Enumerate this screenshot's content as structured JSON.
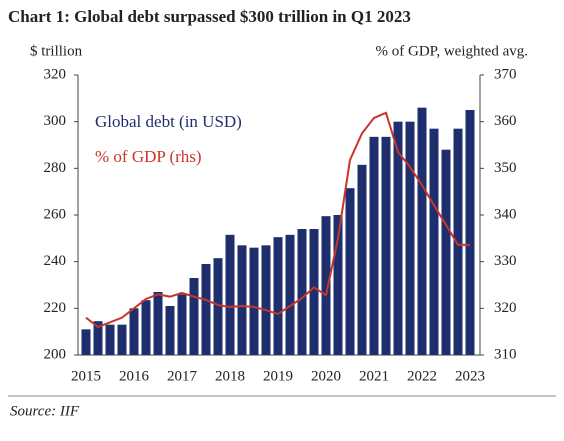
{
  "chart_data": {
    "type": "bar_line",
    "title": "Chart 1: Global debt surpassed $300 trillion in Q1 2023",
    "y_label": "$ trillion",
    "y2_label": "% of GDP, weighted avg.",
    "source": "Source: IIF",
    "categories": [
      "2015",
      null,
      null,
      null,
      "2016",
      null,
      null,
      null,
      "2017",
      null,
      null,
      null,
      "2018",
      null,
      null,
      null,
      "2019",
      null,
      null,
      null,
      "2020",
      null,
      null,
      null,
      "2021",
      null,
      null,
      null,
      "2022",
      null,
      null,
      null,
      "2023"
    ],
    "series": [
      {
        "name": "Global debt (in USD)",
        "type": "bar",
        "color": "#1f2f6e",
        "values": [
          211,
          214.5,
          213,
          213,
          220,
          223.5,
          227,
          221,
          226,
          233,
          239,
          241.5,
          251.5,
          247,
          246,
          247,
          250.5,
          251.5,
          254,
          254,
          259.5,
          260,
          271.5,
          281.5,
          293.5,
          293.5,
          300,
          300,
          306,
          297,
          288,
          297,
          305
        ]
      },
      {
        "name": "% of GDP (rhs)",
        "type": "line",
        "axis": "y2",
        "color": "#c8352b",
        "values": [
          318,
          316,
          317,
          318,
          320,
          322,
          323,
          322.5,
          323.3,
          322.5,
          321.8,
          320.7,
          320.3,
          320.5,
          320.3,
          319.6,
          318.8,
          320.5,
          322.2,
          324.5,
          322.8,
          335,
          351.8,
          357.5,
          360.8,
          361.9,
          353.5,
          350.3,
          346.4,
          342.1,
          337.9,
          333.6,
          333.6
        ]
      }
    ],
    "ylim": [
      200,
      320
    ],
    "yticks": [
      200,
      220,
      240,
      260,
      280,
      300,
      320
    ],
    "y2lim": [
      310,
      370
    ],
    "y2ticks": [
      310,
      320,
      330,
      340,
      350,
      360,
      370
    ]
  }
}
